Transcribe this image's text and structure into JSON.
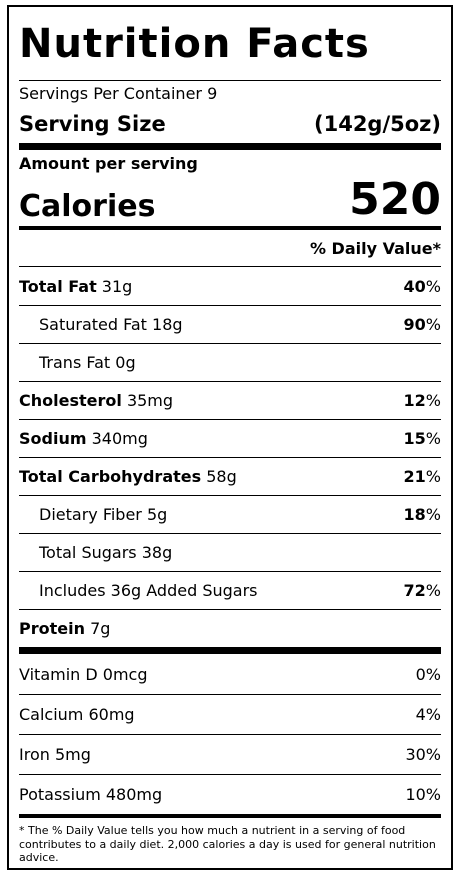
{
  "title": "Nutrition Facts",
  "servings_per_container": "Servings Per Container 9",
  "serving_size": {
    "label": "Serving Size",
    "value": "(142g/5oz)"
  },
  "amount_per_serving": "Amount per serving",
  "calories": {
    "label": "Calories",
    "value": "520"
  },
  "daily_value_header": "% Daily Value*",
  "nutrients": [
    {
      "name": "Total Fat",
      "amount": " 31g",
      "pct": "40",
      "indent": false
    },
    {
      "name": "Saturated Fat 18g",
      "amount": "",
      "pct": "90",
      "indent": true
    },
    {
      "name": "Trans Fat 0g",
      "amount": "",
      "pct": "",
      "indent": true
    },
    {
      "name": "Cholesterol",
      "amount": " 35mg",
      "pct": "12",
      "indent": false
    },
    {
      "name": "Sodium",
      "amount": " 340mg",
      "pct": "15",
      "indent": false
    },
    {
      "name": "Total Carbohydrates",
      "amount": " 58g",
      "pct": "21",
      "indent": false
    },
    {
      "name": "Dietary Fiber 5g",
      "amount": "",
      "pct": "18",
      "indent": true
    },
    {
      "name": "Total Sugars 38g",
      "amount": "",
      "pct": "",
      "indent": true
    },
    {
      "name": "Includes 36g Added Sugars",
      "amount": "",
      "pct": "72",
      "indent": true
    },
    {
      "name": "Protein",
      "amount": " 7g",
      "pct": "",
      "indent": false
    }
  ],
  "percent_sign": "%",
  "vitamins": [
    {
      "label": "Vitamin D 0mcg",
      "pct": "0%"
    },
    {
      "label": "Calcium 60mg",
      "pct": "4%"
    },
    {
      "label": "Iron 5mg",
      "pct": "30%"
    },
    {
      "label": "Potassium 480mg",
      "pct": "10%"
    }
  ],
  "footnote": "* The % Daily Value tells you how much a nutrient in a serving of food contributes to a daily diet. 2,000 calories a day is used for general nutrition advice."
}
